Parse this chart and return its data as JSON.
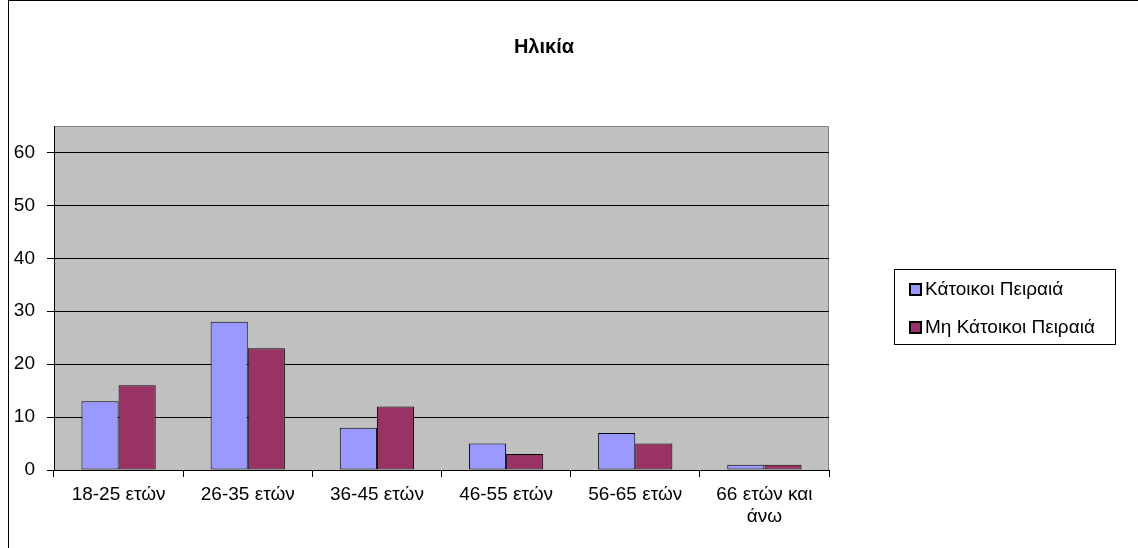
{
  "chart_data": {
    "type": "bar",
    "title": "Ηλικία",
    "categories": [
      "18-25 ετών",
      "26-35 ετών",
      "36-45 ετών",
      "46-55 ετών",
      "56-65 ετών",
      "66 ετών και άνω"
    ],
    "series": [
      {
        "name": "Κάτοικοι Πειραιά",
        "color": "#9999ff",
        "values": [
          13,
          28,
          8,
          5,
          7,
          1
        ]
      },
      {
        "name": "Μη Κάτοικοι Πειραιά",
        "color": "#993366",
        "values": [
          16,
          23,
          12,
          3,
          5,
          1
        ]
      }
    ],
    "ylim": [
      0,
      65
    ],
    "yticks": [
      0,
      10,
      20,
      30,
      40,
      50,
      60
    ],
    "grid": "y",
    "legend": "right"
  }
}
